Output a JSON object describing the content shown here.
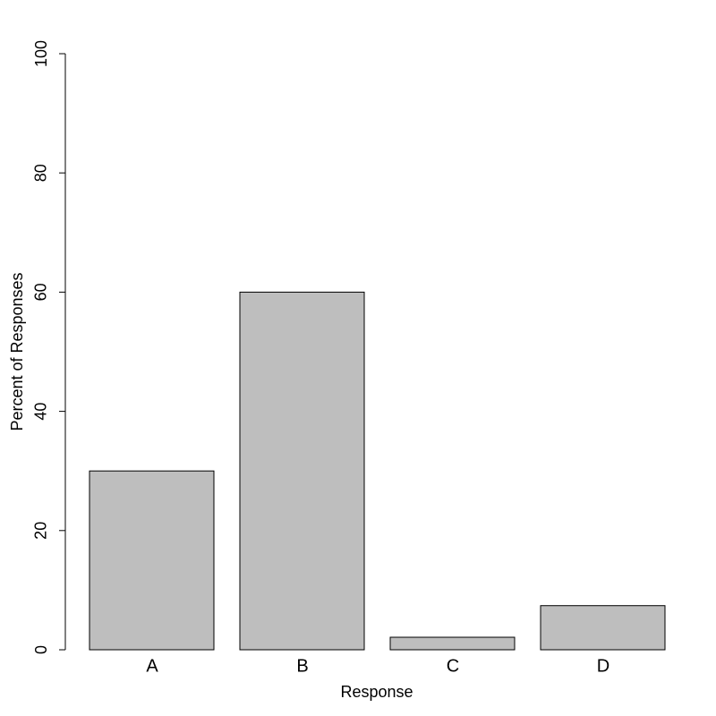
{
  "chart_data": {
    "type": "bar",
    "xlabel": "Response",
    "ylabel": "Percent of Responses",
    "categories": [
      "A",
      "B",
      "C",
      "D"
    ],
    "values": [
      30,
      60,
      2.1,
      7.4
    ],
    "color": "#bebebe",
    "ylim": [
      0,
      100
    ],
    "yticks": [
      0,
      20,
      40,
      60,
      80,
      100
    ]
  }
}
